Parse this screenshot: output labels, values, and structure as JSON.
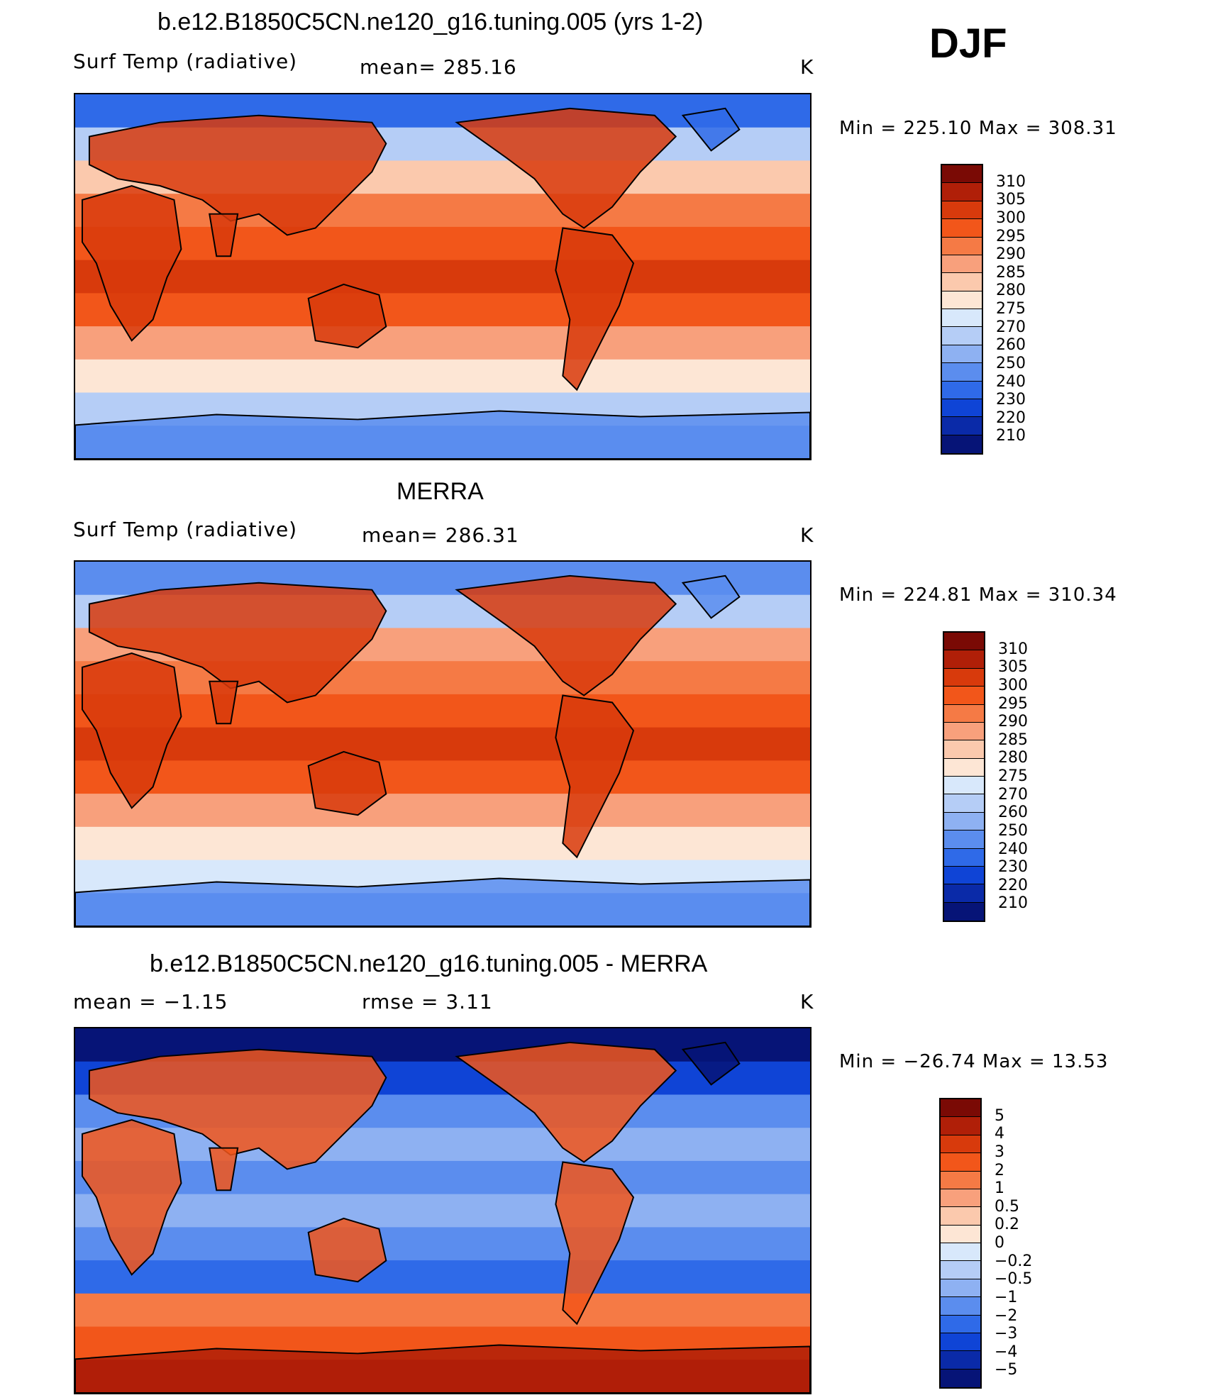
{
  "season": "DJF",
  "units": "K",
  "panels": [
    {
      "title": "b.e12.B1850C5CN.ne120_g16.tuning.005 (yrs 1-2)",
      "field": "Surf Temp (radiative)",
      "stat_text": "mean=  285.16",
      "stat2_text": "",
      "minmax_text": "Min  =  225.10  Max  =  308.31",
      "colorbar": "abs"
    },
    {
      "title": "MERRA",
      "field": "Surf Temp (radiative)",
      "stat_text": "mean=  286.31",
      "stat2_text": "",
      "minmax_text": "Min  =  224.81  Max  =  310.34",
      "colorbar": "abs"
    },
    {
      "title": "b.e12.B1850C5CN.ne120_g16.tuning.005 - MERRA",
      "field": "mean  =    −1.15",
      "stat_text": "",
      "stat2_text": "rmse  =     3.11",
      "minmax_text": "Min  =  −26.74  Max  =    13.53",
      "colorbar": "diff"
    }
  ],
  "colorbars": {
    "abs": {
      "labels": [
        "310",
        "305",
        "300",
        "295",
        "290",
        "285",
        "280",
        "275",
        "270",
        "260",
        "250",
        "240",
        "230",
        "220",
        "210"
      ],
      "colors": [
        "#7a0a05",
        "#b01f08",
        "#d83a0c",
        "#f2561a",
        "#f57a45",
        "#f8a07c",
        "#fbc9ad",
        "#fde6d5",
        "#d8e8fb",
        "#b5cdf6",
        "#8eb1f2",
        "#5b8dee",
        "#2f6ae8",
        "#0f44d6",
        "#0a2aa8",
        "#061477"
      ]
    },
    "diff": {
      "labels": [
        "5",
        "4",
        "3",
        "2",
        "1",
        "0.5",
        "0.2",
        "0",
        "−0.2",
        "−0.5",
        "−1",
        "−2",
        "−3",
        "−4",
        "−5"
      ],
      "colors": [
        "#7a0a05",
        "#b01f08",
        "#d83a0c",
        "#f2561a",
        "#f57a45",
        "#f8a07c",
        "#fbc9ad",
        "#fde6d5",
        "#d8e8fb",
        "#b5cdf6",
        "#8eb1f2",
        "#5b8dee",
        "#2f6ae8",
        "#0f44d6",
        "#0a2aa8",
        "#061477"
      ]
    }
  },
  "map_fields": [
    {
      "name": "model-surface-temperature",
      "bands": [
        "#2f6ae8",
        "#b5cdf6",
        "#fbc9ad",
        "#f57a45",
        "#f2561a",
        "#d83a0c",
        "#f2561a",
        "#f8a07c",
        "#fde6d5",
        "#b5cdf6",
        "#5b8dee"
      ],
      "land": "#d83a0c"
    },
    {
      "name": "merra-surface-temperature",
      "bands": [
        "#5b8dee",
        "#b5cdf6",
        "#f8a07c",
        "#f57a45",
        "#f2561a",
        "#d83a0c",
        "#f2561a",
        "#f8a07c",
        "#fde6d5",
        "#d8e8fb",
        "#5b8dee"
      ],
      "land": "#d83a0c"
    },
    {
      "name": "difference-surface-temperature",
      "bands": [
        "#061477",
        "#0f44d6",
        "#5b8dee",
        "#8eb1f2",
        "#5b8dee",
        "#8eb1f2",
        "#5b8dee",
        "#2f6ae8",
        "#f57a45",
        "#f2561a",
        "#b01f08"
      ],
      "land": "#f2561a"
    }
  ]
}
